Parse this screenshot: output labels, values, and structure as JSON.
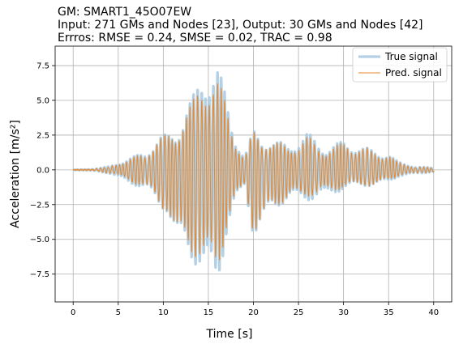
{
  "chart_data": {
    "type": "line",
    "title_lines": [
      "GM: SMART1_45O07EW",
      "Input: 271 GMs and Nodes [23], Output: 30 GMs and Nodes [42]",
      "Errros: RMSE = 0.24, SMSE = 0.02, TRAC = 0.98"
    ],
    "xlabel": "Time [s]",
    "ylabel": "Acceleration [m/s²]",
    "xlim": [
      -2,
      42
    ],
    "ylim": [
      -9.5,
      8.9
    ],
    "x_ticks": [
      0,
      5,
      10,
      15,
      20,
      25,
      30,
      35,
      40
    ],
    "x_tick_labels": [
      "0",
      "5",
      "10",
      "15",
      "20",
      "25",
      "30",
      "35",
      "40"
    ],
    "y_ticks": [
      -7.5,
      -5.0,
      -2.5,
      0.0,
      2.5,
      5.0,
      7.5
    ],
    "y_tick_labels": [
      "−7.5",
      "−5.0",
      "−2.5",
      "0.0",
      "2.5",
      "5.0",
      "7.5"
    ],
    "grid": true,
    "legend_position": "top-right",
    "series": [
      {
        "name": "True signal",
        "color": "#a6c8e0",
        "role": "true"
      },
      {
        "name": "Pred. signal",
        "color": "#e8872b",
        "role": "pred"
      }
    ],
    "signal": {
      "duration_s": 40,
      "dt_s": 0.02,
      "dominant_frequency_hz": 2.4,
      "envelope_time_s": [
        0.0,
        2.0,
        4.0,
        6.0,
        8.0,
        9.5,
        10.5,
        11.5,
        12.5,
        13.5,
        14.5,
        15.3,
        16.0,
        17.0,
        18.0,
        19.0,
        20.0,
        21.0,
        22.0,
        24.0,
        26.0,
        28.0,
        30.0,
        32.0,
        34.0,
        35.0,
        36.0,
        38.0,
        40.0
      ],
      "envelope_peak_pos": [
        0.0,
        0.05,
        0.25,
        0.8,
        1.3,
        2.4,
        2.6,
        2.9,
        4.6,
        5.6,
        7.6,
        8.2,
        7.8,
        5.2,
        2.6,
        1.0,
        2.9,
        2.3,
        2.2,
        1.8,
        2.7,
        1.6,
        2.1,
        1.7,
        1.3,
        1.2,
        0.6,
        0.25,
        0.15
      ],
      "envelope_peak_neg": [
        0.0,
        0.05,
        0.25,
        0.9,
        1.4,
        2.6,
        3.1,
        5.9,
        5.7,
        6.8,
        8.4,
        8.6,
        8.4,
        4.9,
        2.6,
        1.2,
        4.8,
        4.5,
        2.9,
        2.2,
        2.2,
        2.0,
        1.4,
        1.2,
        1.1,
        0.9,
        0.5,
        0.3,
        0.15
      ],
      "peak_true": {
        "max": 8.2,
        "min": -8.6
      },
      "peak_pred": {
        "max": 7.8,
        "min": -8.4
      }
    }
  }
}
